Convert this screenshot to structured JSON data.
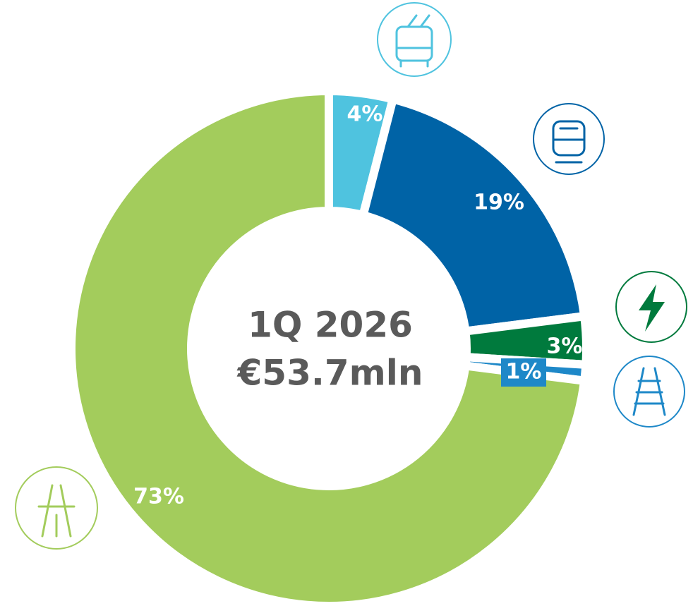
{
  "chart_data": {
    "type": "donut",
    "center_text": [
      "1Q 2026",
      "€53.7mln"
    ],
    "categories": [
      null,
      null,
      null,
      null,
      null
    ],
    "values": [
      4,
      19,
      3,
      1,
      73
    ],
    "value_labels": [
      "4%",
      "19%",
      "3%",
      "1%",
      "73%"
    ],
    "colors": [
      "#4fc3df",
      "#0063a6",
      "#007a3d",
      "#1e88c8",
      "#a3cc5c"
    ]
  }
}
